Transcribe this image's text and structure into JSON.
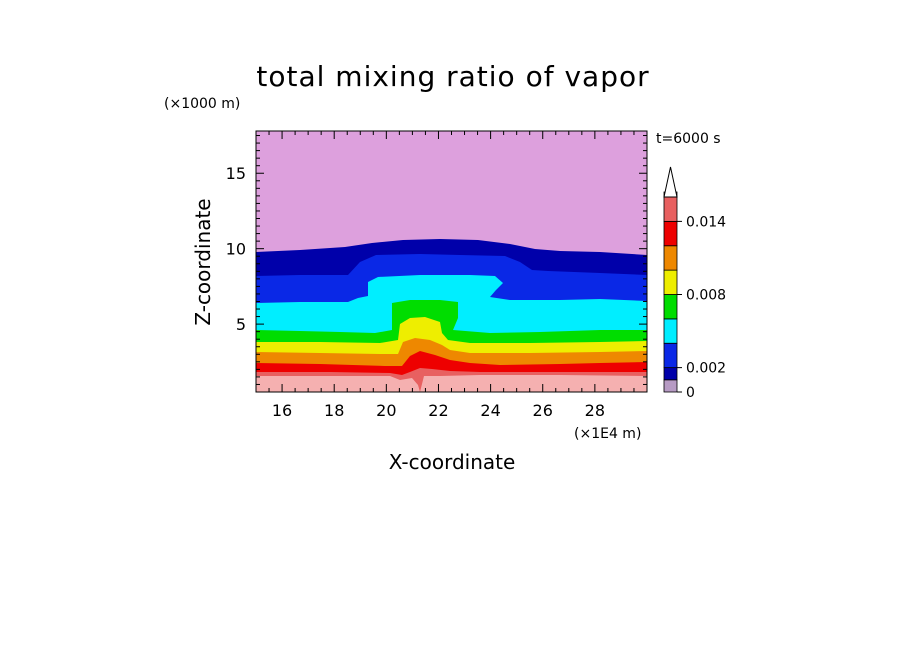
{
  "chart_data": {
    "type": "heatmap",
    "title": "total mixing ratio of vapor",
    "xlabel": "X-coordinate",
    "ylabel": "Z-coordinate",
    "x_unit": "(×1E4 m)",
    "y_unit": "(×1000 m)",
    "time_label": "t=6000 s",
    "xlim": [
      15,
      30
    ],
    "ylim": [
      0.5,
      17.8
    ],
    "x_ticks": [
      16,
      18,
      20,
      22,
      24,
      26,
      28
    ],
    "y_ticks": [
      5,
      10,
      15
    ],
    "colorbar": {
      "tick_labels": [
        {
          "label": "0",
          "value": 0
        },
        {
          "label": "0.002",
          "value": 0.002
        },
        {
          "label": "0.008",
          "value": 0.008
        },
        {
          "label": "0.014",
          "value": 0.014
        }
      ],
      "levels": [
        0,
        0.001,
        0.002,
        0.004,
        0.006,
        0.008,
        0.01,
        0.012,
        0.014,
        0.016
      ],
      "colors": [
        "#b79bc4",
        "#0000aa",
        "#0a28e6",
        "#00eeff",
        "#00dd00",
        "#eeee00",
        "#ee8800",
        "#ee0000",
        "#e86060",
        "#f5b0b0"
      ],
      "extend": "max"
    },
    "contour_layers": [
      {
        "level": 0,
        "color": "#dda0dd"
      },
      {
        "level": 0.001,
        "color": "#0000aa"
      },
      {
        "level": 0.002,
        "color": "#0a28e6"
      },
      {
        "level": 0.004,
        "color": "#00eeff"
      },
      {
        "level": 0.006,
        "color": "#00dd00"
      },
      {
        "level": 0.008,
        "color": "#eeee00"
      },
      {
        "level": 0.01,
        "color": "#ee8800"
      },
      {
        "level": 0.012,
        "color": "#ee0000"
      },
      {
        "level": 0.014,
        "color": "#e86060"
      },
      {
        "level": 0.016,
        "color": "#f5b0b0"
      }
    ],
    "grid": false
  }
}
